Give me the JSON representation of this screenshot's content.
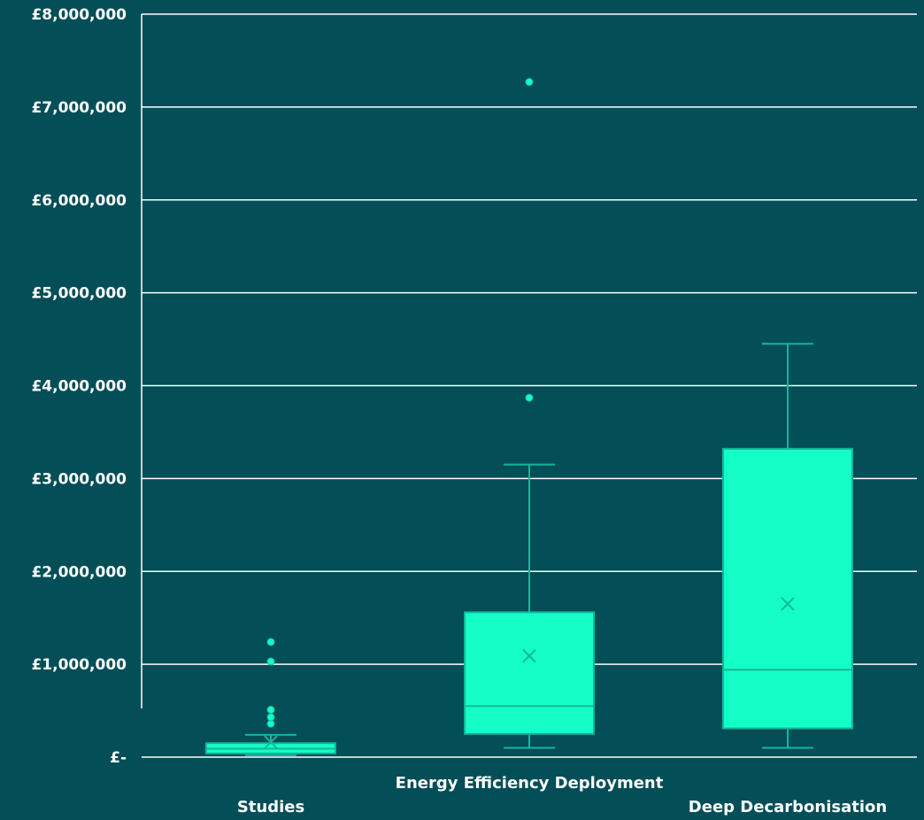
{
  "chart_data": {
    "type": "box",
    "title": "",
    "xlabel": "",
    "ylabel": "",
    "ylim": [
      0,
      8000000
    ],
    "y_ticks": [
      {
        "value": 0,
        "label": "£-"
      },
      {
        "value": 1000000,
        "label": "£1,000,000"
      },
      {
        "value": 2000000,
        "label": "£2,000,000"
      },
      {
        "value": 3000000,
        "label": "£3,000,000"
      },
      {
        "value": 4000000,
        "label": "£4,000,000"
      },
      {
        "value": 5000000,
        "label": "£5,000,000"
      },
      {
        "value": 6000000,
        "label": "£6,000,000"
      },
      {
        "value": 7000000,
        "label": "£7,000,000"
      },
      {
        "value": 8000000,
        "label": "£8,000,000"
      }
    ],
    "grid": true,
    "categories": [
      "Studies",
      "Energy Efficiency Deployment",
      "Deep Decarbonisation"
    ],
    "boxes": [
      {
        "category": "Studies",
        "min": 20000,
        "q1": 40000,
        "median": 90000,
        "q3": 150000,
        "max": 240000,
        "mean": 160000,
        "outliers": [
          360000,
          430000,
          510000,
          1030000,
          1240000
        ]
      },
      {
        "category": "Energy Efficiency Deployment",
        "min": 100000,
        "q1": 250000,
        "median": 550000,
        "q3": 1560000,
        "max": 3150000,
        "mean": 1090000,
        "outliers": [
          3870000,
          7270000
        ]
      },
      {
        "category": "Deep Decarbonisation",
        "min": 100000,
        "q1": 310000,
        "median": 940000,
        "q3": 3320000,
        "max": 4450000,
        "mean": 1650000,
        "outliers": []
      }
    ],
    "colors": {
      "background": "#034e57",
      "box_fill": "#14ffc8",
      "box_stroke": "#12b79a",
      "grid": "#ffffff",
      "text": "#ffffff"
    }
  }
}
